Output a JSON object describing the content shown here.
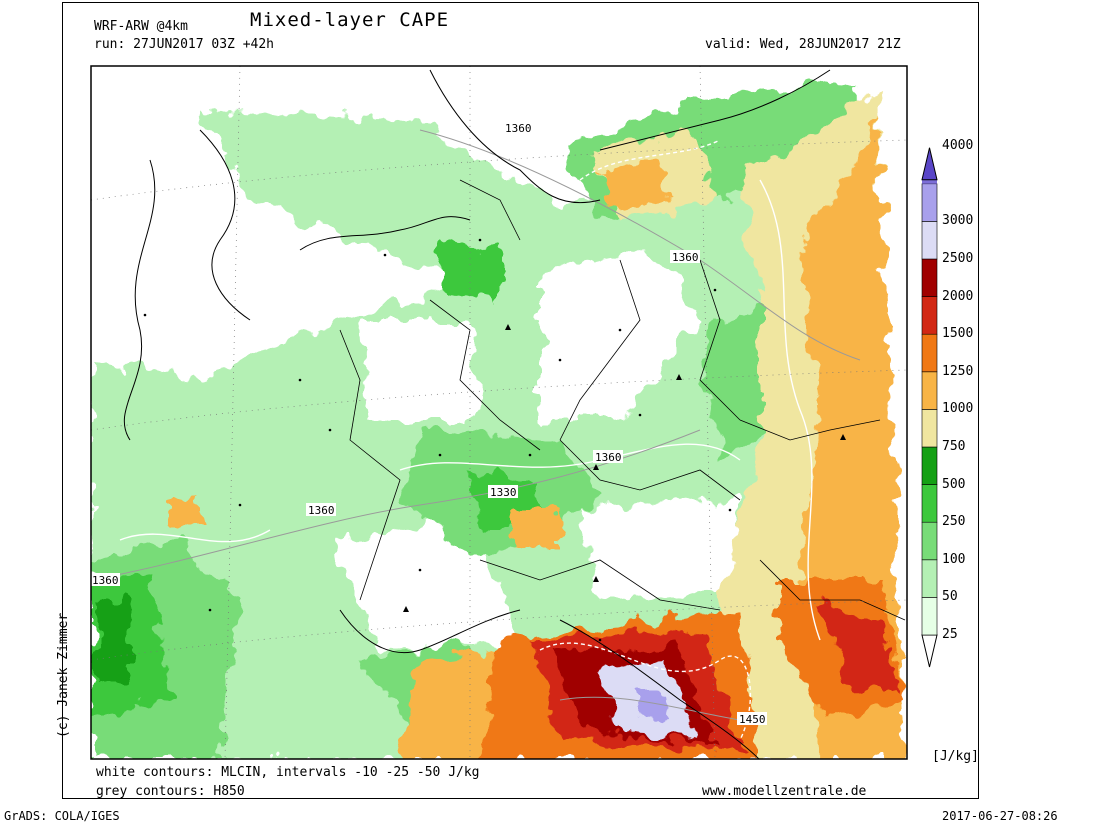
{
  "header": {
    "model": "WRF-ARW @4km",
    "title": "Mixed-layer CAPE",
    "run": "run: 27JUN2017 03Z +42h",
    "valid": "valid: Wed, 28JUN2017 21Z"
  },
  "footer": {
    "white_contours": "white contours: MLCIN, intervals -10 -25 -50 J/kg",
    "grey_contours": "grey contours: H850",
    "website": "www.modellzentrale.de",
    "grads": "GrADS: COLA/IGES",
    "timestamp": "2017-06-27-08:26"
  },
  "copyright": "(c) Janek Zimmer",
  "colorbar": {
    "unit": "[J/kg]",
    "levels": [
      {
        "label": "25",
        "color": "#e6ffe6"
      },
      {
        "label": "50",
        "color": "#b4f0b4"
      },
      {
        "label": "100",
        "color": "#78dc78"
      },
      {
        "label": "250",
        "color": "#3cc83c"
      },
      {
        "label": "500",
        "color": "#14a014"
      },
      {
        "label": "750",
        "color": "#f0e6a0"
      },
      {
        "label": "1000",
        "color": "#f8b446"
      },
      {
        "label": "1250",
        "color": "#f07814"
      },
      {
        "label": "1500",
        "color": "#d22814"
      },
      {
        "label": "2000",
        "color": "#a00000"
      },
      {
        "label": "2500",
        "color": "#dcdcf5"
      },
      {
        "label": "3000",
        "color": "#a8a0ec"
      },
      {
        "label": "4000",
        "color": "#7c6ed8"
      }
    ],
    "top_color": "#5a46c8"
  },
  "contour_labels": [
    "1360",
    "1360",
    "1360",
    "1360",
    "1330",
    "1360",
    "1450"
  ]
}
